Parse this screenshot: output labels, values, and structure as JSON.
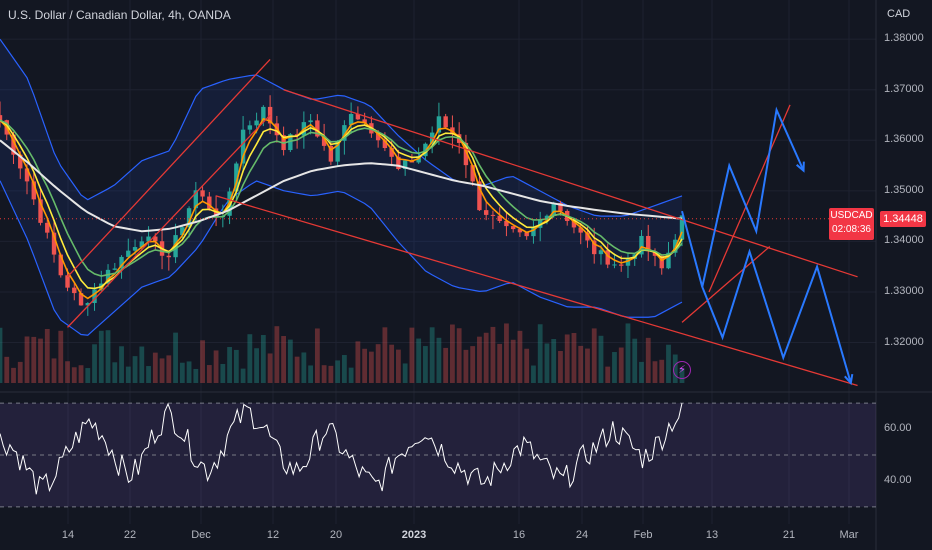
{
  "header": {
    "title": "U.S. Dollar / Canadian Dollar, 4h, OANDA",
    "currency": "CAD"
  },
  "price_tag": {
    "symbol": "USDCAD",
    "countdown": "02:08:36"
  },
  "current_price": "1.34448",
  "colors": {
    "background": "#131722",
    "up": "#26a69a",
    "down": "#ef5350",
    "bollinger": "#2962ff",
    "channel": "#e53935",
    "projection": "#2979ff",
    "sma": "#e6e6e6",
    "ema_fast": "#ff9800",
    "ema_mid": "#ffeb3b",
    "ema_slow": "#66bb6a",
    "rsi": "#ffffff",
    "rsi_band": "#7e57c2"
  },
  "chart_data": [
    {
      "type": "line",
      "title": "U.S. Dollar / Canadian Dollar, 4h, OANDA",
      "unit": "CAD",
      "x_labels": [
        "14",
        "22",
        "Dec",
        "12",
        "20",
        "2023",
        "16",
        "24",
        "Feb",
        "13",
        "21",
        "Mar"
      ],
      "x_label_bold": "2023",
      "ylim": [
        1.312,
        1.383
      ],
      "y_ticks": [
        1.32,
        1.33,
        1.34,
        1.35,
        1.36,
        1.37,
        1.38
      ],
      "y_tick_labels": [
        "1.32000",
        "1.33000",
        "1.34000",
        "1.35000",
        "1.36000",
        "1.37000",
        "1.38000"
      ],
      "current_price": 1.34448,
      "price_path": [
        {
          "i": 0,
          "v": 1.364
        },
        {
          "i": 4,
          "v": 1.352
        },
        {
          "i": 9,
          "v": 1.3335
        },
        {
          "i": 12,
          "v": 1.327
        },
        {
          "i": 16,
          "v": 1.334
        },
        {
          "i": 21,
          "v": 1.341
        },
        {
          "i": 25,
          "v": 1.337
        },
        {
          "i": 29,
          "v": 1.35
        },
        {
          "i": 33,
          "v": 1.344
        },
        {
          "i": 36,
          "v": 1.362
        },
        {
          "i": 39,
          "v": 1.366
        },
        {
          "i": 42,
          "v": 1.359
        },
        {
          "i": 46,
          "v": 1.364
        },
        {
          "i": 49,
          "v": 1.356
        },
        {
          "i": 52,
          "v": 1.366
        },
        {
          "i": 56,
          "v": 1.361
        },
        {
          "i": 59,
          "v": 1.354
        },
        {
          "i": 62,
          "v": 1.357
        },
        {
          "i": 65,
          "v": 1.364
        },
        {
          "i": 68,
          "v": 1.36
        },
        {
          "i": 71,
          "v": 1.347
        },
        {
          "i": 75,
          "v": 1.342
        },
        {
          "i": 78,
          "v": 1.3405
        },
        {
          "i": 82,
          "v": 1.348
        },
        {
          "i": 85,
          "v": 1.343
        },
        {
          "i": 88,
          "v": 1.338
        },
        {
          "i": 92,
          "v": 1.335
        },
        {
          "i": 95,
          "v": 1.34
        },
        {
          "i": 98,
          "v": 1.3345
        },
        {
          "i": 101,
          "v": 1.3445
        }
      ],
      "n_bars": 102,
      "series": [
        {
          "name": "",
          "style": "sma",
          "values": [
            1.36,
            1.3555,
            1.3505,
            1.346,
            1.343,
            1.342,
            1.3425,
            1.344,
            1.346,
            1.349,
            1.352,
            1.354,
            1.355,
            1.3555,
            1.355,
            1.3535,
            1.352,
            1.351,
            1.3495,
            1.348,
            1.347,
            1.3462,
            1.3455,
            1.345,
            1.3445
          ]
        },
        {
          "name": "",
          "style": "bb_upper",
          "values": [
            1.38,
            1.372,
            1.356,
            1.348,
            1.351,
            1.356,
            1.358,
            1.37,
            1.372,
            1.373,
            1.37,
            1.368,
            1.369,
            1.367,
            1.361,
            1.356,
            1.352,
            1.351,
            1.353,
            1.35,
            1.347,
            1.345,
            1.345,
            1.347,
            1.349
          ]
        },
        {
          "name": "",
          "style": "bb_lower",
          "values": [
            1.352,
            1.34,
            1.325,
            1.321,
            1.326,
            1.331,
            1.333,
            1.339,
            1.348,
            1.352,
            1.35,
            1.349,
            1.35,
            1.347,
            1.34,
            1.334,
            1.331,
            1.33,
            1.332,
            1.329,
            1.327,
            1.327,
            1.325,
            1.325,
            1.328
          ]
        }
      ],
      "channels": [
        {
          "name": "",
          "from": {
            "i": 10,
            "v": 1.333
          },
          "to": {
            "i": 40,
            "v": 1.376
          }
        },
        {
          "name": "",
          "from": {
            "i": 10,
            "v": 1.323
          },
          "to": {
            "i": 40,
            "v": 1.365
          }
        },
        {
          "name": "",
          "from": {
            "i": 42,
            "v": 1.37
          },
          "to": {
            "i": 127,
            "v": 1.333
          }
        },
        {
          "name": "",
          "from": {
            "i": 32,
            "v": 1.349
          },
          "to": {
            "i": 127,
            "v": 1.3115
          }
        },
        {
          "name": "",
          "from": {
            "i": 105,
            "v": 1.33
          },
          "to": {
            "i": 117,
            "v": 1.367
          }
        },
        {
          "name": "",
          "from": {
            "i": 101,
            "v": 1.324
          },
          "to": {
            "i": 114,
            "v": 1.339
          }
        }
      ],
      "projections": [
        [
          {
            "i": 101,
            "v": 1.346
          },
          {
            "i": 104,
            "v": 1.331
          },
          {
            "i": 108,
            "v": 1.355
          },
          {
            "i": 112,
            "v": 1.342
          },
          {
            "i": 115,
            "v": 1.366
          },
          {
            "i": 119,
            "v": 1.354
          }
        ],
        [
          {
            "i": 104,
            "v": 1.331
          },
          {
            "i": 107,
            "v": 1.321
          },
          {
            "i": 111,
            "v": 1.338
          },
          {
            "i": 116,
            "v": 1.317
          },
          {
            "i": 121,
            "v": 1.335
          },
          {
            "i": 126,
            "v": 1.312
          }
        ]
      ]
    },
    {
      "type": "line",
      "title": "",
      "ylim": [
        28,
        72
      ],
      "y_ticks": [
        60,
        40
      ],
      "y_tick_labels": [
        "60.00",
        "40.00"
      ],
      "band": [
        40,
        60
      ],
      "series": [
        {
          "name": "",
          "values": [
            56,
            54,
            49,
            43,
            37,
            39,
            45,
            52,
            58,
            63,
            60,
            54,
            47,
            42,
            45,
            54,
            61,
            66,
            62,
            55,
            48,
            44,
            49,
            57,
            63,
            67,
            64,
            59,
            51,
            46,
            44,
            48,
            55,
            60,
            56,
            50,
            45,
            41,
            38,
            42,
            49,
            53,
            57,
            60,
            55,
            51,
            47,
            44,
            41,
            39,
            43,
            47,
            51,
            54,
            50,
            46,
            42,
            40,
            44,
            49,
            52,
            56,
            60,
            57,
            53,
            49,
            52,
            57,
            63,
            66
          ]
        }
      ]
    }
  ]
}
